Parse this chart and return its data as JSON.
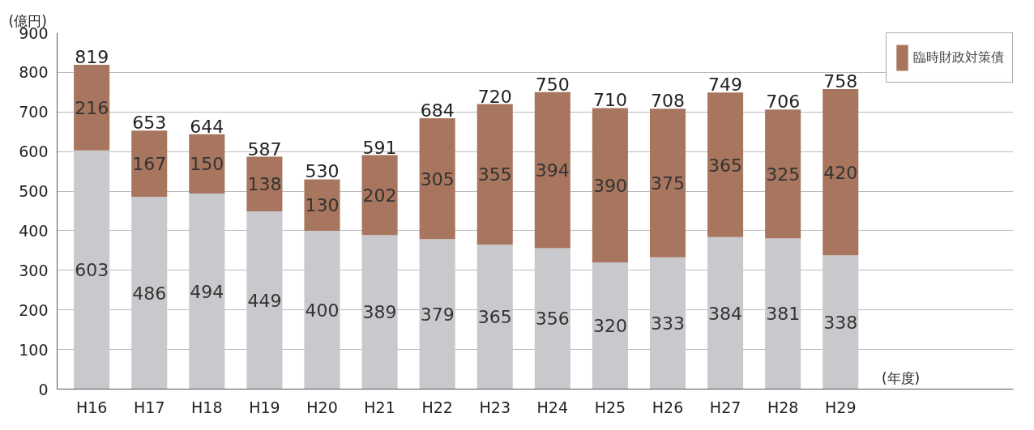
{
  "chart_data": {
    "type": "bar",
    "stacked": true,
    "ylabel": "(億円)",
    "xlabel": "(年度)",
    "categories": [
      "H16",
      "H17",
      "H18",
      "H19",
      "H20",
      "H21",
      "H22",
      "H23",
      "H24",
      "H25",
      "H26",
      "H27",
      "H28",
      "H29"
    ],
    "series": [
      {
        "color": "#c9c9cd",
        "values": [
          603,
          486,
          494,
          449,
          400,
          389,
          379,
          365,
          356,
          320,
          333,
          384,
          381,
          338
        ]
      },
      {
        "name": "臨時財政対策債",
        "color": "#a8765e",
        "values": [
          216,
          167,
          150,
          138,
          130,
          202,
          305,
          355,
          394,
          390,
          375,
          365,
          325,
          420
        ]
      }
    ],
    "totals": [
      "819",
      "653",
      "644",
      "587",
      "530",
      "591",
      "684",
      "720",
      "750",
      "710",
      "708",
      "749",
      "706",
      "758"
    ],
    "data_labels": true,
    "ylim": [
      0,
      900
    ],
    "yticks": [
      0,
      100,
      200,
      300,
      400,
      500,
      600,
      700,
      800,
      900
    ],
    "grid": "y",
    "legend": "top right"
  }
}
